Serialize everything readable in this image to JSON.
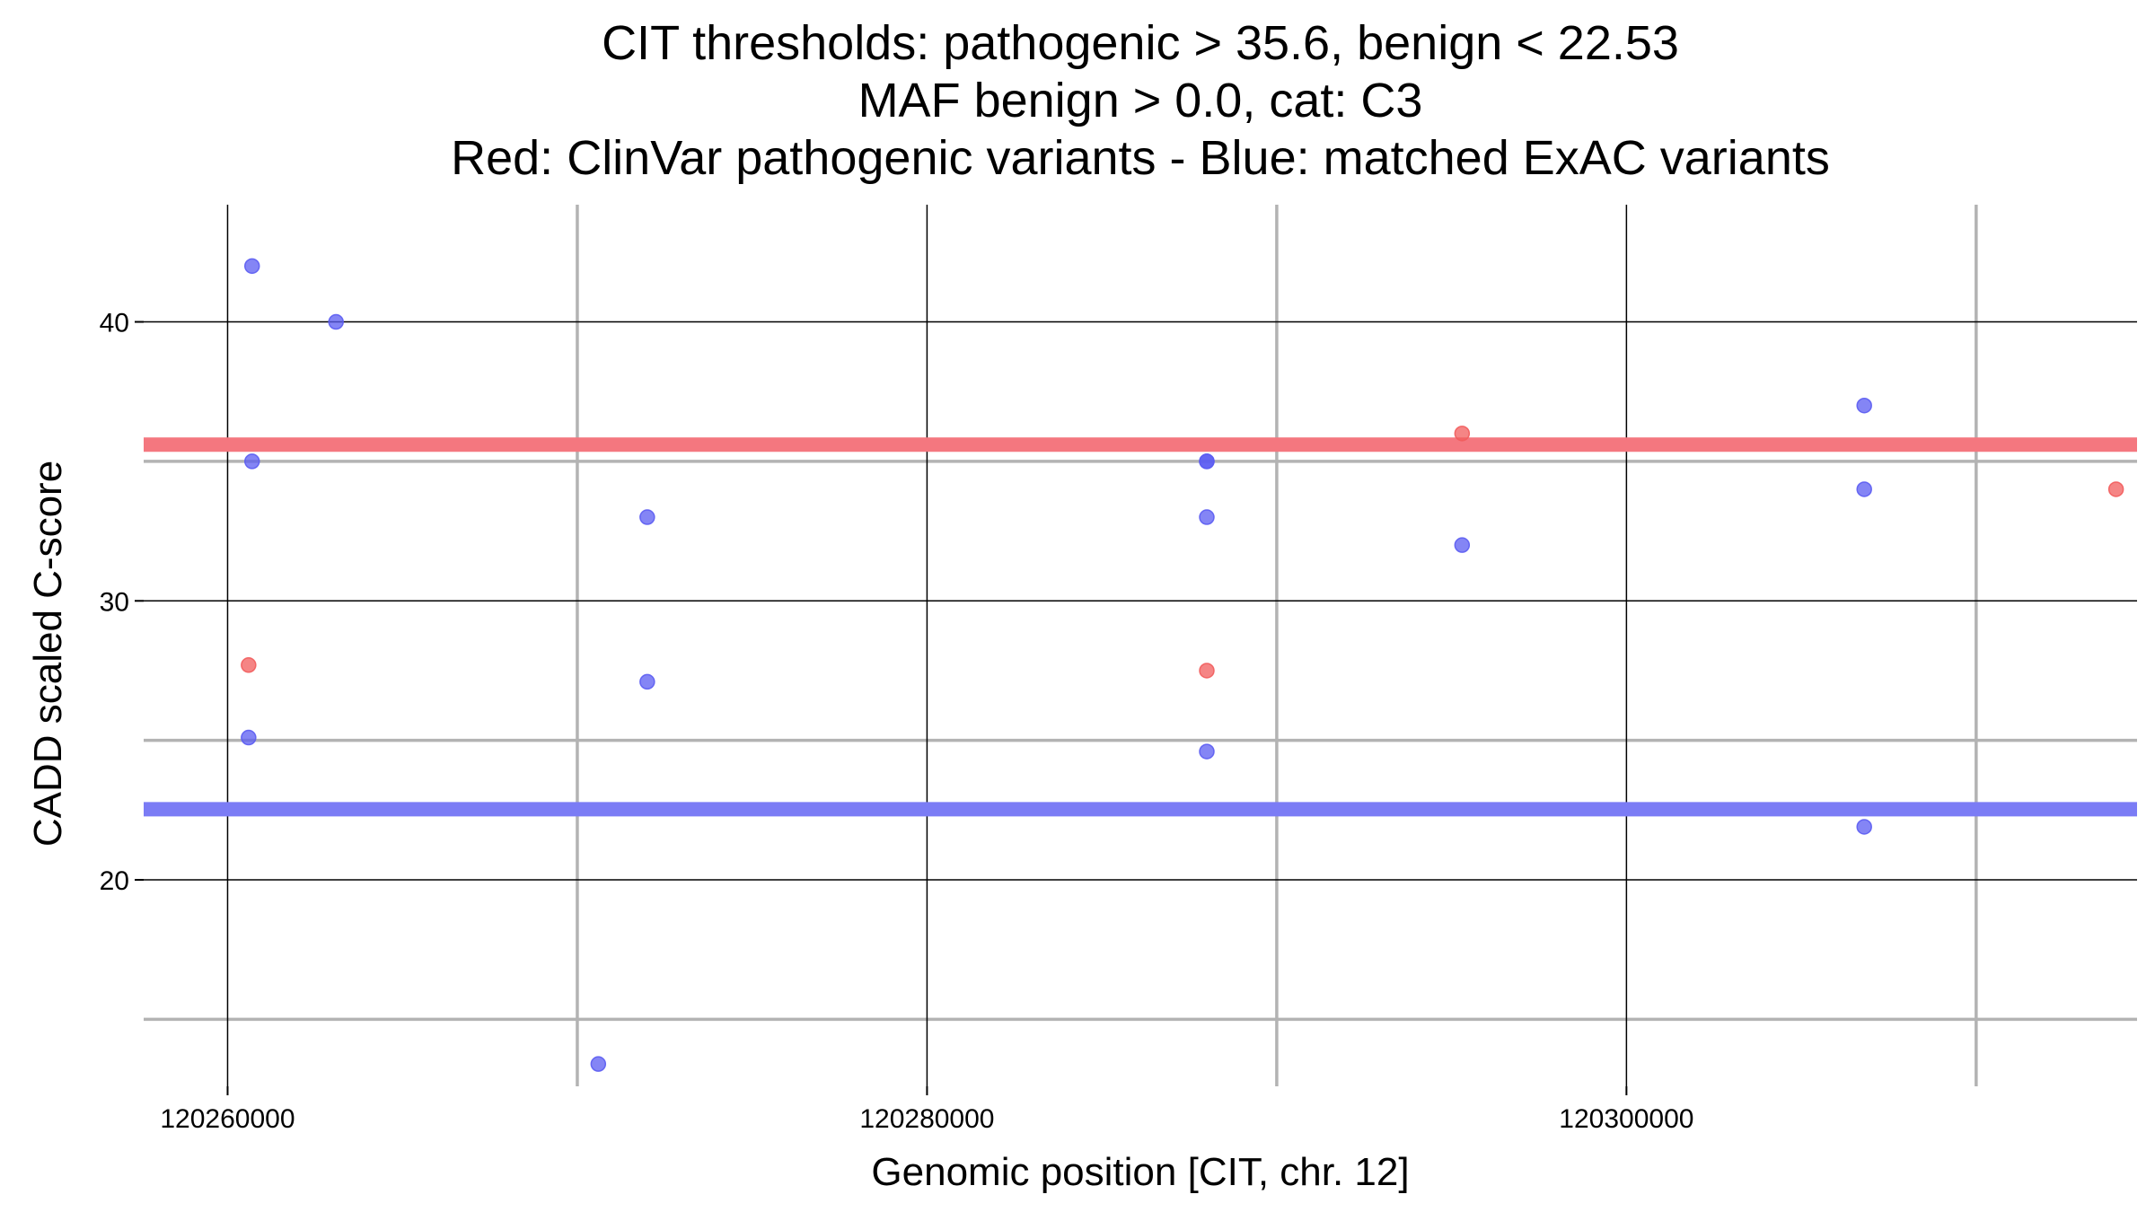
{
  "chart_data": {
    "type": "scatter",
    "title_lines": [
      "CIT thresholds: pathogenic > 35.6, benign < 22.53",
      "MAF benign > 0.0, cat: C3",
      "Red: ClinVar pathogenic variants - Blue: matched ExAC variants"
    ],
    "xlabel": "Genomic position [CIT, chr. 12]",
    "ylabel": "CADD scaled C-score",
    "xlim": [
      120257600,
      120314600
    ],
    "ylim": [
      12.6,
      44.2
    ],
    "x_major_ticks": [
      120260000,
      120280000,
      120300000
    ],
    "x_tick_labels": [
      "120260000",
      "120280000",
      "120300000"
    ],
    "x_minor_gridlines": [
      120270000,
      120290000,
      120310000
    ],
    "y_major_ticks": [
      20,
      30,
      40
    ],
    "y_tick_labels": [
      "20",
      "30",
      "40"
    ],
    "y_minor_gridlines": [
      15,
      25,
      35
    ],
    "thresholds": [
      {
        "name": "pathogenic",
        "value": 35.6,
        "color": "#f4777f"
      },
      {
        "name": "benign",
        "value": 22.53,
        "color": "#7b7cf5"
      }
    ],
    "series": [
      {
        "name": "ClinVar pathogenic variants",
        "color": "#f25c5c",
        "points": [
          {
            "x": 120260600,
            "y": 27.7
          },
          {
            "x": 120288000,
            "y": 27.5
          },
          {
            "x": 120295300,
            "y": 36.0
          },
          {
            "x": 120314000,
            "y": 34.0
          }
        ]
      },
      {
        "name": "matched ExAC variants",
        "color": "#5b5cf2",
        "points": [
          {
            "x": 120260700,
            "y": 42.0
          },
          {
            "x": 120263100,
            "y": 40.0
          },
          {
            "x": 120260700,
            "y": 35.0
          },
          {
            "x": 120260600,
            "y": 25.1
          },
          {
            "x": 120272000,
            "y": 33.0
          },
          {
            "x": 120272000,
            "y": 27.1
          },
          {
            "x": 120270600,
            "y": 13.4
          },
          {
            "x": 120288000,
            "y": 35.0
          },
          {
            "x": 120288000,
            "y": 35.0
          },
          {
            "x": 120288000,
            "y": 33.0
          },
          {
            "x": 120288000,
            "y": 24.6
          },
          {
            "x": 120295300,
            "y": 32.0
          },
          {
            "x": 120306800,
            "y": 37.0
          },
          {
            "x": 120306800,
            "y": 34.0
          },
          {
            "x": 120306800,
            "y": 21.9
          }
        ]
      }
    ]
  }
}
